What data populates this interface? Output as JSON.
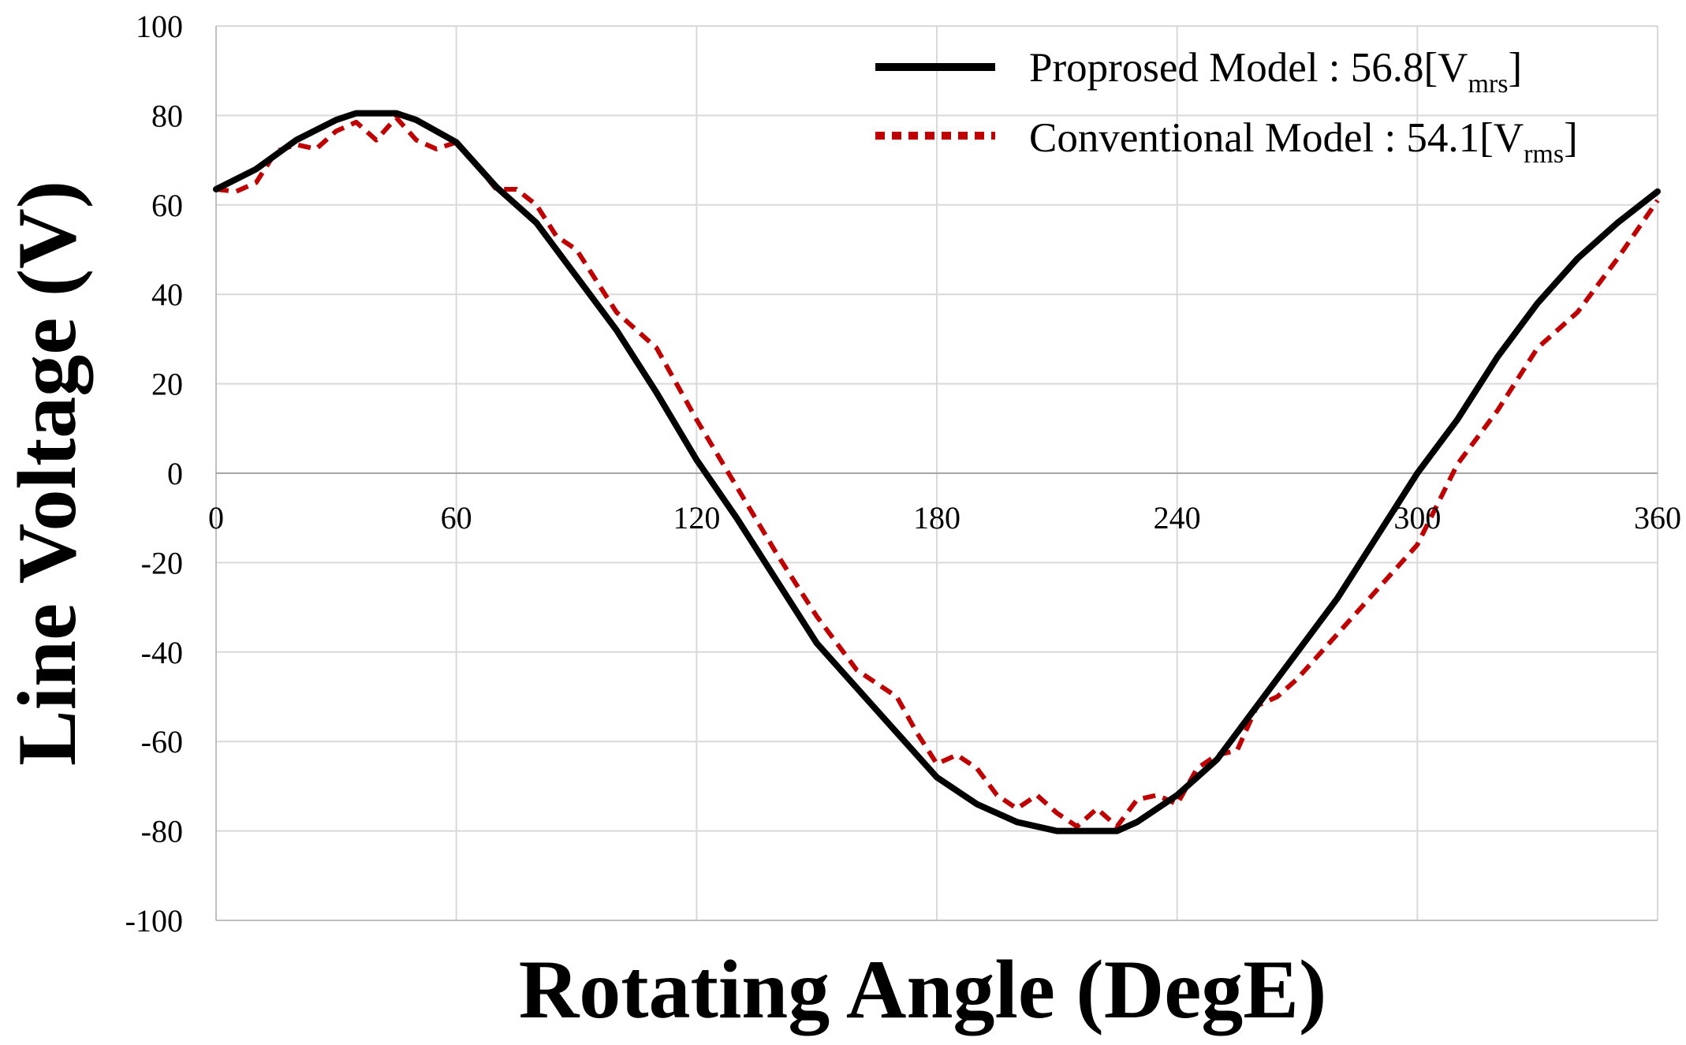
{
  "chart_data": {
    "type": "line",
    "xlabel": "Rotating Angle (DegE)",
    "ylabel": "Line Voltage (V)",
    "xlim": [
      0,
      360
    ],
    "ylim": [
      -100,
      100
    ],
    "x_ticks": [
      "0",
      "60",
      "120",
      "180",
      "240",
      "300",
      "360"
    ],
    "x_tick_values": [
      0,
      60,
      120,
      180,
      240,
      300,
      360
    ],
    "y_ticks": [
      "100",
      "80",
      "60",
      "40",
      "20",
      "0",
      "-20",
      "-40",
      "-60",
      "-80",
      "-100"
    ],
    "y_tick_values": [
      100,
      80,
      60,
      40,
      20,
      0,
      -20,
      -40,
      -60,
      -80,
      -100
    ],
    "grid": true,
    "legend_position": "top-right",
    "series": [
      {
        "name": "Proprosed Model",
        "legend_label": "Proprosed Model : 56.8[V",
        "legend_subscript": "mrs",
        "legend_suffix": "]",
        "color": "#000000",
        "style": "solid",
        "x": [
          0,
          10,
          20,
          30,
          35,
          40,
          45,
          50,
          60,
          70,
          80,
          90,
          100,
          110,
          120,
          130,
          140,
          150,
          160,
          170,
          180,
          190,
          200,
          210,
          215,
          220,
          225,
          230,
          240,
          250,
          260,
          270,
          280,
          290,
          300,
          310,
          320,
          330,
          340,
          350,
          360
        ],
        "values": [
          63.5,
          68,
          74.5,
          79,
          80.5,
          80.5,
          80.5,
          79,
          74,
          64,
          56,
          44,
          32,
          18,
          3,
          -10,
          -24,
          -38,
          -48,
          -58,
          -68,
          -74,
          -78,
          -80,
          -80,
          -80,
          -80,
          -78,
          -72,
          -64,
          -52,
          -40,
          -28,
          -14,
          0,
          12,
          26,
          38,
          48,
          56,
          63
        ]
      },
      {
        "name": "Conventional Model",
        "legend_label": "Conventional Model : 54.1[V",
        "legend_subscript": "rms",
        "legend_suffix": "]",
        "color": "#c00000",
        "style": "dotted",
        "x": [
          0,
          5,
          10,
          15,
          20,
          25,
          30,
          35,
          40,
          45,
          50,
          55,
          60,
          65,
          70,
          75,
          80,
          85,
          90,
          100,
          110,
          120,
          130,
          140,
          150,
          160,
          170,
          175,
          180,
          185,
          190,
          195,
          200,
          205,
          210,
          215,
          220,
          225,
          230,
          235,
          240,
          245,
          250,
          255,
          260,
          265,
          270,
          280,
          290,
          300,
          310,
          320,
          330,
          340,
          350,
          360
        ],
        "values": [
          63.5,
          63,
          65,
          72,
          73.5,
          72.5,
          76.5,
          78.5,
          74.5,
          79.5,
          74.5,
          72.5,
          74,
          69,
          63.5,
          63.5,
          60,
          53,
          50,
          36,
          28,
          12,
          -3,
          -18,
          -32,
          -44,
          -50,
          -58,
          -65,
          -63,
          -66,
          -72,
          -75,
          -72,
          -76,
          -79,
          -75,
          -79,
          -73,
          -72,
          -74,
          -66,
          -63,
          -62,
          -52,
          -50,
          -46,
          -36,
          -26,
          -16,
          2,
          14,
          28,
          36,
          48,
          61
        ]
      }
    ]
  }
}
